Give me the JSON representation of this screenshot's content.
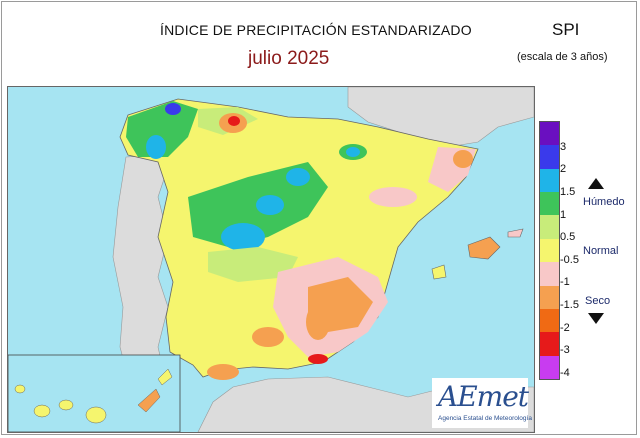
{
  "header": {
    "title": "ÍNDICE DE PRECIPITACIÓN ESTANDARIZADO",
    "subtitle": "julio  2025",
    "index_name": "SPI",
    "scale_note": "(escala de 3 años)"
  },
  "legend": {
    "ticks": [
      "3",
      "2",
      "1.5",
      "1",
      "0.5",
      "-0.5",
      "-1",
      "-1.5",
      "-2",
      "-3",
      "-4"
    ],
    "labels": {
      "wet": "Húmedo",
      "normal": "Normal",
      "dry": "Seco"
    },
    "colors": [
      "#6a0fc0",
      "#3a3aeb",
      "#1fb4e8",
      "#3ec45a",
      "#c8ec7a",
      "#f5f56e",
      "#f8c8c8",
      "#f5a050",
      "#f06a14",
      "#e61a1a",
      "#c83cf0"
    ]
  },
  "logo": {
    "text": "AEmet",
    "subtext": "Agencia Estatal de Meteorología"
  },
  "colors": {
    "sea": "#a6e4f2",
    "land_foreign": "#dcdcdc",
    "normal": "#f5f56e"
  }
}
